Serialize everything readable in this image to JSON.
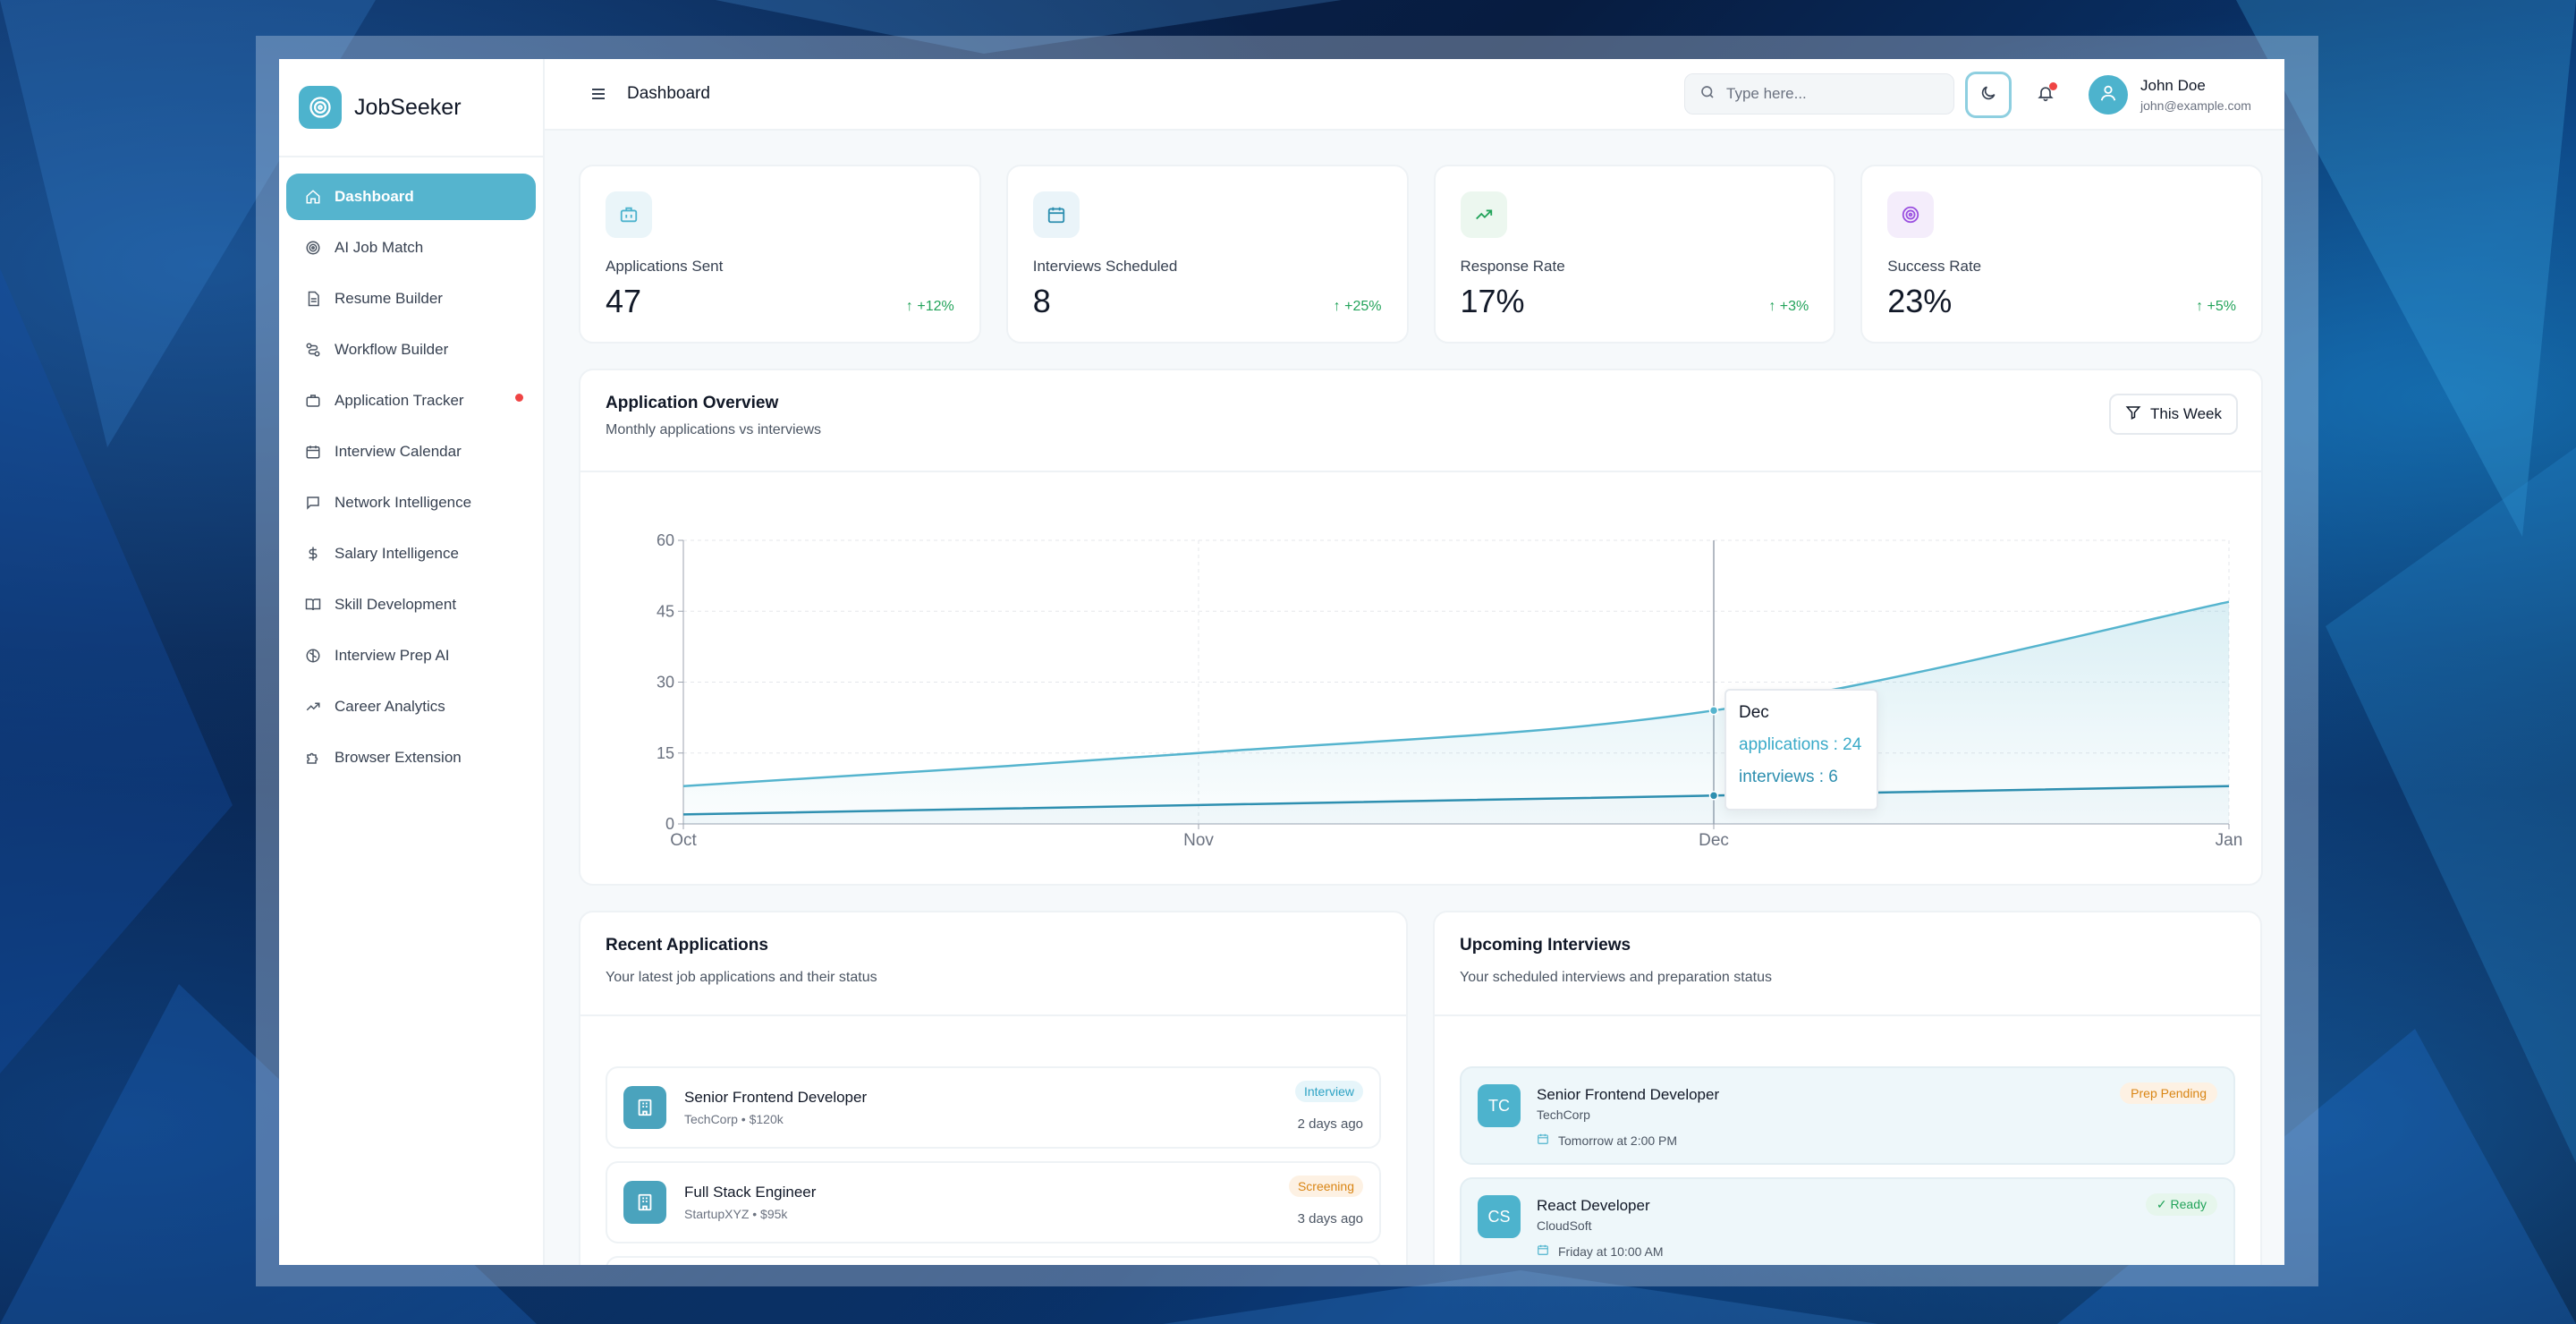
{
  "brand": {
    "name": "JobSeeker"
  },
  "sidebar": {
    "items": [
      {
        "label": "Dashboard",
        "icon": "home-icon",
        "active": true
      },
      {
        "label": "AI Job Match",
        "icon": "target-icon"
      },
      {
        "label": "Resume Builder",
        "icon": "file-icon"
      },
      {
        "label": "Workflow Builder",
        "icon": "workflow-icon"
      },
      {
        "label": "Application Tracker",
        "icon": "briefcase-icon",
        "notification": true
      },
      {
        "label": "Interview Calendar",
        "icon": "calendar-icon"
      },
      {
        "label": "Network Intelligence",
        "icon": "message-icon"
      },
      {
        "label": "Salary Intelligence",
        "icon": "dollar-icon"
      },
      {
        "label": "Skill Development",
        "icon": "book-icon"
      },
      {
        "label": "Interview Prep AI",
        "icon": "brain-icon"
      },
      {
        "label": "Career Analytics",
        "icon": "trending-up-icon"
      },
      {
        "label": "Browser Extension",
        "icon": "puzzle-icon"
      }
    ]
  },
  "header": {
    "title": "Dashboard",
    "search_placeholder": "Type here...",
    "user": {
      "name": "John Doe",
      "email": "john@example.com"
    }
  },
  "stats": [
    {
      "label": "Applications Sent",
      "value": "47",
      "change": "+12%",
      "icon": "briefcase-icon",
      "icon_bg": "#eaf5f9",
      "icon_color": "#4db3cd"
    },
    {
      "label": "Interviews Scheduled",
      "value": "8",
      "change": "+25%",
      "icon": "calendar-icon",
      "icon_bg": "#eaf4f9",
      "icon_color": "#2e8fb0"
    },
    {
      "label": "Response Rate",
      "value": "17%",
      "change": "+3%",
      "icon": "trending-up-icon",
      "icon_bg": "#ecf7ef",
      "icon_color": "#22a35a"
    },
    {
      "label": "Success Rate",
      "value": "23%",
      "change": "+5%",
      "icon": "target-icon",
      "icon_bg": "#f4edfb",
      "icon_color": "#9b51e0"
    }
  ],
  "overview": {
    "title": "Application Overview",
    "subtitle": "Monthly applications vs interviews",
    "filter_label": "This Week",
    "tooltip": {
      "title": "Dec",
      "applications": "applications : 24",
      "interviews": "interviews : 6"
    }
  },
  "chart_data": {
    "type": "area",
    "categories": [
      "Oct",
      "Nov",
      "Dec",
      "Jan"
    ],
    "series": [
      {
        "name": "applications",
        "values": [
          8,
          15,
          24,
          47
        ],
        "color": "#55b4ce"
      },
      {
        "name": "interviews",
        "values": [
          2,
          4,
          6,
          8
        ],
        "color": "#2e8fb0"
      }
    ],
    "ylim": [
      0,
      60
    ],
    "yticks": [
      0,
      15,
      30,
      45,
      60
    ],
    "grid": true,
    "highlight_category": "Dec"
  },
  "recent": {
    "title": "Recent Applications",
    "subtitle": "Your latest job applications and their status",
    "items": [
      {
        "title": "Senior Frontend Developer",
        "meta": "TechCorp • $120k",
        "status": "Interview",
        "time": "2 days ago"
      },
      {
        "title": "Full Stack Engineer",
        "meta": "StartupXYZ • $95k",
        "status": "Screening",
        "time": "3 days ago"
      }
    ]
  },
  "upcoming": {
    "title": "Upcoming Interviews",
    "subtitle": "Your scheduled interviews and preparation status",
    "items": [
      {
        "initials": "TC",
        "title": "Senior Frontend Developer",
        "company": "TechCorp",
        "when": "Tomorrow at 2:00 PM",
        "status": "Prep Pending"
      },
      {
        "initials": "CS",
        "title": "React Developer",
        "company": "CloudSoft",
        "when": "Friday at 10:00 AM",
        "status": "✓ Ready"
      }
    ]
  }
}
